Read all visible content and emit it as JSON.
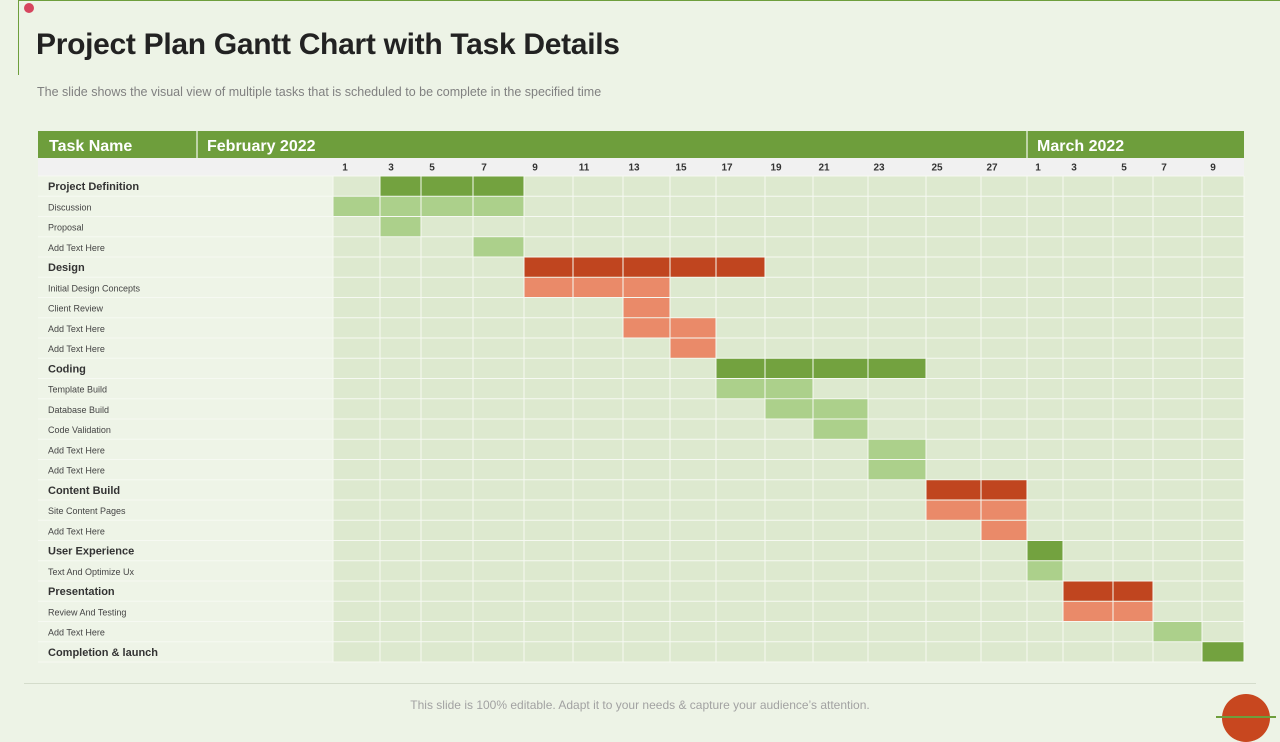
{
  "slide": {
    "title": "Project Plan Gantt Chart with Task Details",
    "subtitle": "The slide shows the visual view  of multiple tasks that is scheduled to be complete in the specified time",
    "footer": "This slide is 100% editable. Adapt it to your needs & capture your audience’s attention."
  },
  "chart_data": {
    "type": "gantt",
    "columns": {
      "task_header": "Task Name",
      "months": [
        {
          "label": "February 2022",
          "first_col": 0,
          "last_col": 13
        },
        {
          "label": "March 2022",
          "first_col": 14,
          "last_col": 18
        }
      ],
      "day_ticks": [
        "1",
        "3",
        "5",
        "7",
        "9",
        "11",
        "13",
        "15",
        "17",
        "19",
        "21",
        "23",
        "25",
        "27",
        "1",
        "3",
        "5",
        "7",
        "9"
      ]
    },
    "colors": {
      "header_green": "#6e9e3c",
      "phase_green": "#73a23f",
      "task_green": "#acd08b",
      "phase_red": "#c0451f",
      "task_red": "#ea8a69"
    },
    "rows": [
      {
        "label": "Project Definition",
        "phase": true,
        "start": 1,
        "end": 3,
        "color": "green"
      },
      {
        "label": "Discussion",
        "phase": false,
        "start": 0,
        "end": 3,
        "color": "green"
      },
      {
        "label": "Proposal",
        "phase": false,
        "start": 1,
        "end": 1,
        "color": "green"
      },
      {
        "label": "Add Text Here",
        "phase": false,
        "start": 3,
        "end": 3,
        "color": "green"
      },
      {
        "label": "Design",
        "phase": true,
        "start": 4,
        "end": 8,
        "color": "red"
      },
      {
        "label": "Initial Design Concepts",
        "phase": false,
        "start": 4,
        "end": 6,
        "color": "red"
      },
      {
        "label": "Client Review",
        "phase": false,
        "start": 6,
        "end": 6,
        "color": "red"
      },
      {
        "label": " Add Text Here",
        "phase": false,
        "start": 6,
        "end": 7,
        "color": "red"
      },
      {
        "label": "Add Text Here",
        "phase": false,
        "start": 7,
        "end": 7,
        "color": "red"
      },
      {
        "label": "Coding",
        "phase": true,
        "start": 8,
        "end": 11,
        "color": "green"
      },
      {
        "label": "Template Build",
        "phase": false,
        "start": 8,
        "end": 9,
        "color": "green"
      },
      {
        "label": "Database Build",
        "phase": false,
        "start": 9,
        "end": 10,
        "color": "green"
      },
      {
        "label": "Code Validation",
        "phase": false,
        "start": 10,
        "end": 10,
        "color": "green"
      },
      {
        "label": "Add Text Here",
        "phase": false,
        "start": 11,
        "end": 11,
        "color": "green"
      },
      {
        "label": "Add Text Here",
        "phase": false,
        "start": 11,
        "end": 11,
        "color": "green"
      },
      {
        "label": "Content Build",
        "phase": true,
        "start": 12,
        "end": 13,
        "color": "red"
      },
      {
        "label": "Site Content Pages",
        "phase": false,
        "start": 12,
        "end": 13,
        "color": "red"
      },
      {
        "label": "Add Text Here",
        "phase": false,
        "start": 13,
        "end": 13,
        "color": "red"
      },
      {
        "label": "User Experience",
        "phase": true,
        "start": 14,
        "end": 14,
        "color": "green"
      },
      {
        "label": "Text And Optimize Ux",
        "phase": false,
        "start": 14,
        "end": 14,
        "color": "green"
      },
      {
        "label": "Presentation",
        "phase": true,
        "start": 15,
        "end": 16,
        "color": "red"
      },
      {
        "label": "Review And Testing",
        "phase": false,
        "start": 15,
        "end": 16,
        "color": "red"
      },
      {
        "label": "Add Text Here",
        "phase": false,
        "start": 17,
        "end": 17,
        "color": "green"
      },
      {
        "label": "Completion & launch",
        "phase": true,
        "start": 18,
        "end": 18,
        "color": "green"
      }
    ]
  }
}
